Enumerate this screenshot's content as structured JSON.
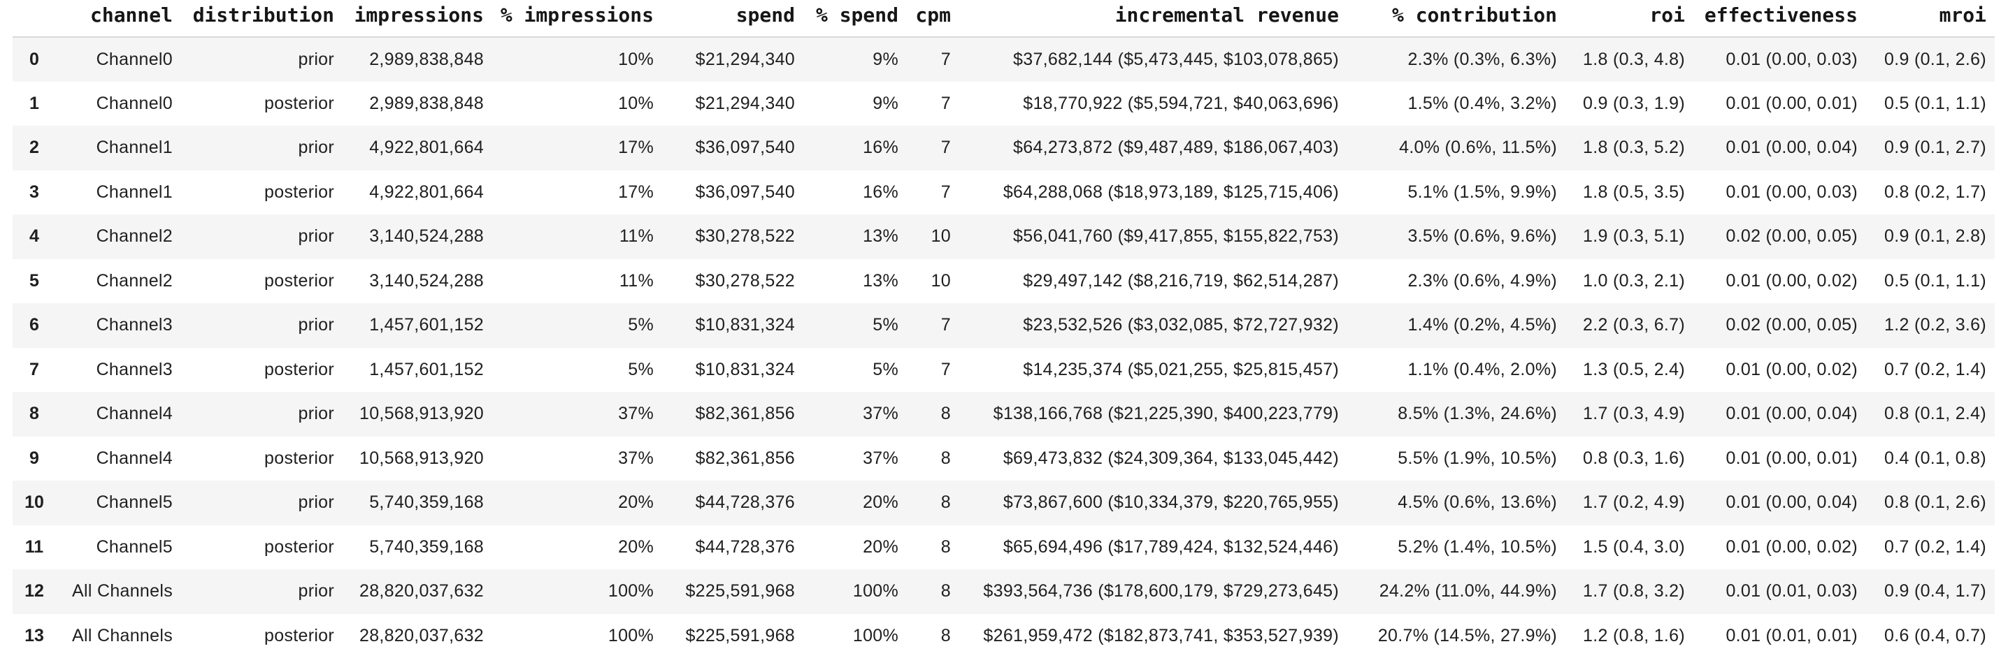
{
  "colors": {
    "background": "#ffffff",
    "stripe": "#f5f5f5",
    "divider": "#d9d9d9",
    "header_text": "#161616",
    "body_text": "#1f1f1f"
  },
  "table": {
    "columns": [
      "",
      "channel",
      "distribution",
      "impressions",
      "% impressions",
      "spend",
      "% spend",
      "cpm",
      "incremental revenue",
      "% contribution",
      "roi",
      "effectiveness",
      "mroi"
    ],
    "rows": [
      [
        "0",
        "Channel0",
        "prior",
        "2,989,838,848",
        "10%",
        "$21,294,340",
        "9%",
        "7",
        "$37,682,144 ($5,473,445, $103,078,865)",
        "2.3% (0.3%, 6.3%)",
        "1.8 (0.3, 4.8)",
        "0.01 (0.00, 0.03)",
        "0.9 (0.1, 2.6)"
      ],
      [
        "1",
        "Channel0",
        "posterior",
        "2,989,838,848",
        "10%",
        "$21,294,340",
        "9%",
        "7",
        "$18,770,922 ($5,594,721, $40,063,696)",
        "1.5% (0.4%, 3.2%)",
        "0.9 (0.3, 1.9)",
        "0.01 (0.00, 0.01)",
        "0.5 (0.1, 1.1)"
      ],
      [
        "2",
        "Channel1",
        "prior",
        "4,922,801,664",
        "17%",
        "$36,097,540",
        "16%",
        "7",
        "$64,273,872 ($9,487,489, $186,067,403)",
        "4.0% (0.6%, 11.5%)",
        "1.8 (0.3, 5.2)",
        "0.01 (0.00, 0.04)",
        "0.9 (0.1, 2.7)"
      ],
      [
        "3",
        "Channel1",
        "posterior",
        "4,922,801,664",
        "17%",
        "$36,097,540",
        "16%",
        "7",
        "$64,288,068 ($18,973,189, $125,715,406)",
        "5.1% (1.5%, 9.9%)",
        "1.8 (0.5, 3.5)",
        "0.01 (0.00, 0.03)",
        "0.8 (0.2, 1.7)"
      ],
      [
        "4",
        "Channel2",
        "prior",
        "3,140,524,288",
        "11%",
        "$30,278,522",
        "13%",
        "10",
        "$56,041,760 ($9,417,855, $155,822,753)",
        "3.5% (0.6%, 9.6%)",
        "1.9 (0.3, 5.1)",
        "0.02 (0.00, 0.05)",
        "0.9 (0.1, 2.8)"
      ],
      [
        "5",
        "Channel2",
        "posterior",
        "3,140,524,288",
        "11%",
        "$30,278,522",
        "13%",
        "10",
        "$29,497,142 ($8,216,719, $62,514,287)",
        "2.3% (0.6%, 4.9%)",
        "1.0 (0.3, 2.1)",
        "0.01 (0.00, 0.02)",
        "0.5 (0.1, 1.1)"
      ],
      [
        "6",
        "Channel3",
        "prior",
        "1,457,601,152",
        "5%",
        "$10,831,324",
        "5%",
        "7",
        "$23,532,526 ($3,032,085, $72,727,932)",
        "1.4% (0.2%, 4.5%)",
        "2.2 (0.3, 6.7)",
        "0.02 (0.00, 0.05)",
        "1.2 (0.2, 3.6)"
      ],
      [
        "7",
        "Channel3",
        "posterior",
        "1,457,601,152",
        "5%",
        "$10,831,324",
        "5%",
        "7",
        "$14,235,374 ($5,021,255, $25,815,457)",
        "1.1% (0.4%, 2.0%)",
        "1.3 (0.5, 2.4)",
        "0.01 (0.00, 0.02)",
        "0.7 (0.2, 1.4)"
      ],
      [
        "8",
        "Channel4",
        "prior",
        "10,568,913,920",
        "37%",
        "$82,361,856",
        "37%",
        "8",
        "$138,166,768 ($21,225,390, $400,223,779)",
        "8.5% (1.3%, 24.6%)",
        "1.7 (0.3, 4.9)",
        "0.01 (0.00, 0.04)",
        "0.8 (0.1, 2.4)"
      ],
      [
        "9",
        "Channel4",
        "posterior",
        "10,568,913,920",
        "37%",
        "$82,361,856",
        "37%",
        "8",
        "$69,473,832 ($24,309,364, $133,045,442)",
        "5.5% (1.9%, 10.5%)",
        "0.8 (0.3, 1.6)",
        "0.01 (0.00, 0.01)",
        "0.4 (0.1, 0.8)"
      ],
      [
        "10",
        "Channel5",
        "prior",
        "5,740,359,168",
        "20%",
        "$44,728,376",
        "20%",
        "8",
        "$73,867,600 ($10,334,379, $220,765,955)",
        "4.5% (0.6%, 13.6%)",
        "1.7 (0.2, 4.9)",
        "0.01 (0.00, 0.04)",
        "0.8 (0.1, 2.6)"
      ],
      [
        "11",
        "Channel5",
        "posterior",
        "5,740,359,168",
        "20%",
        "$44,728,376",
        "20%",
        "8",
        "$65,694,496 ($17,789,424, $132,524,446)",
        "5.2% (1.4%, 10.5%)",
        "1.5 (0.4, 3.0)",
        "0.01 (0.00, 0.02)",
        "0.7 (0.2, 1.4)"
      ],
      [
        "12",
        "All Channels",
        "prior",
        "28,820,037,632",
        "100%",
        "$225,591,968",
        "100%",
        "8",
        "$393,564,736 ($178,600,179, $729,273,645)",
        "24.2% (11.0%, 44.9%)",
        "1.7 (0.8, 3.2)",
        "0.01 (0.01, 0.03)",
        "0.9 (0.4, 1.7)"
      ],
      [
        "13",
        "All Channels",
        "posterior",
        "28,820,037,632",
        "100%",
        "$225,591,968",
        "100%",
        "8",
        "$261,959,472 ($182,873,741, $353,527,939)",
        "20.7% (14.5%, 27.9%)",
        "1.2 (0.8, 1.6)",
        "0.01 (0.01, 0.01)",
        "0.6 (0.4, 0.7)"
      ]
    ]
  }
}
